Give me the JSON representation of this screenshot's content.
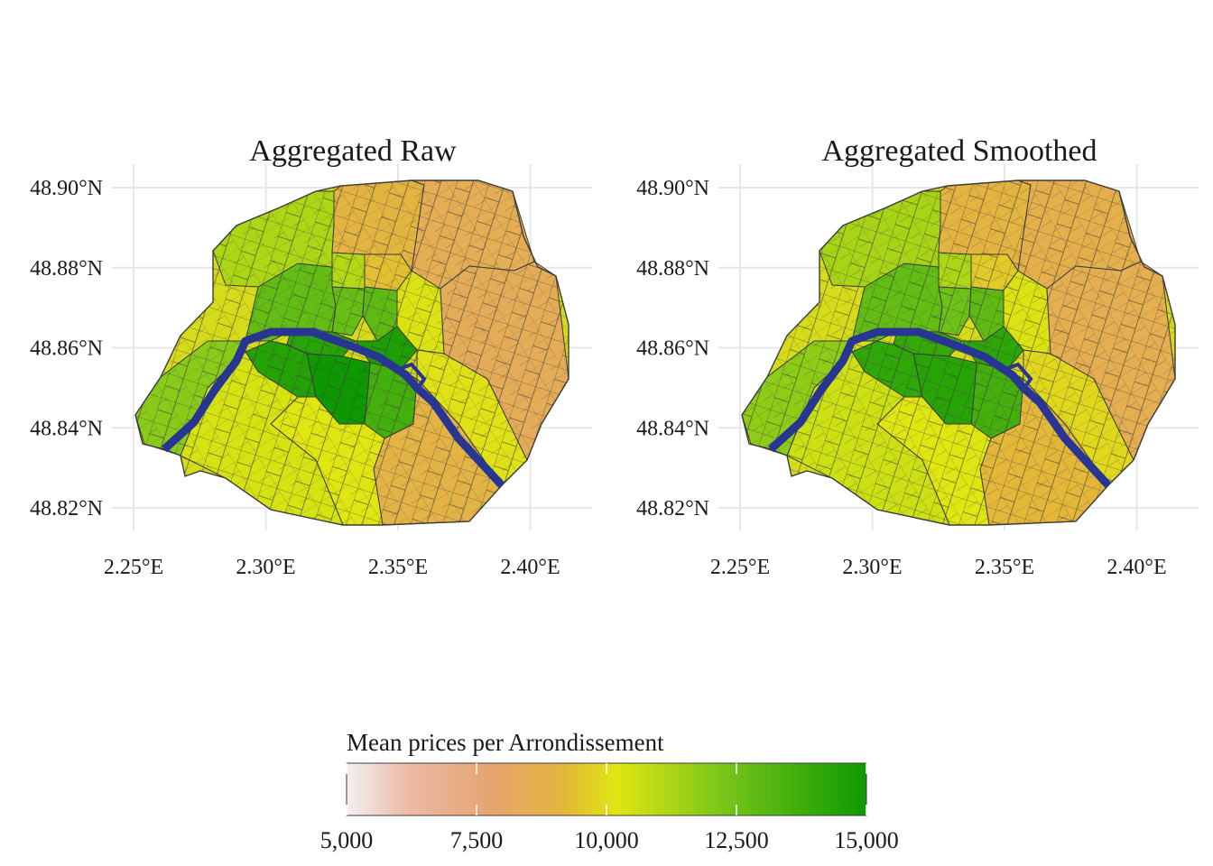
{
  "panels": [
    {
      "title": "Aggregated Raw",
      "smoothed": false,
      "lat_ticks": [
        "48.90°N",
        "48.88°N",
        "48.86°N",
        "48.84°N",
        "48.82°N"
      ],
      "lon_ticks": [
        "2.25°E",
        "2.30°E",
        "2.35°E",
        "2.40°E"
      ]
    },
    {
      "title": "Aggregated Smoothed",
      "smoothed": true,
      "lat_ticks": [
        "48.90°N",
        "48.88°N",
        "48.86°N",
        "48.84°N",
        "48.82°N"
      ],
      "lon_ticks": [
        "2.25°E",
        "2.30°E",
        "2.35°E",
        "2.40°E"
      ]
    }
  ],
  "map_data": {
    "lat_values": [
      48.9,
      48.88,
      48.86,
      48.84,
      48.82
    ],
    "lon_values": [
      2.25,
      2.3,
      2.35,
      2.4
    ],
    "river_color": "#283593",
    "border_color": "#3c3c3c",
    "districts": [
      {
        "id": 1,
        "value": 14300
      },
      {
        "id": 2,
        "value": 12700
      },
      {
        "id": 3,
        "value": 12900
      },
      {
        "id": 4,
        "value": 14600
      },
      {
        "id": 5,
        "value": 13600
      },
      {
        "id": 6,
        "value": 15000
      },
      {
        "id": 7,
        "value": 14400
      },
      {
        "id": 8,
        "value": 12800
      },
      {
        "id": 9,
        "value": 11100
      },
      {
        "id": 10,
        "value": 9400
      },
      {
        "id": 11,
        "value": 10300
      },
      {
        "id": 12,
        "value": 10100
      },
      {
        "id": 13,
        "value": 8900
      },
      {
        "id": 14,
        "value": 10200
      },
      {
        "id": 15,
        "value": 10400
      },
      {
        "id": 16,
        "value": 11900
      },
      {
        "id": 17,
        "value": 11200
      },
      {
        "id": 18,
        "value": 9000
      },
      {
        "id": 19,
        "value": 8500
      },
      {
        "id": 20,
        "value": 8400
      }
    ]
  },
  "legend": {
    "title": "Mean prices per Arrondissement",
    "min": 5000,
    "max": 15000,
    "break_values": [
      5000,
      7500,
      10000,
      12500,
      15000
    ],
    "labels": [
      "5,000",
      "7,500",
      "10,000",
      "12,500",
      "15,000"
    ],
    "colors": [
      "#f2f0f0",
      "#e6a36f",
      "#e0e612",
      "#0d9a00"
    ]
  }
}
